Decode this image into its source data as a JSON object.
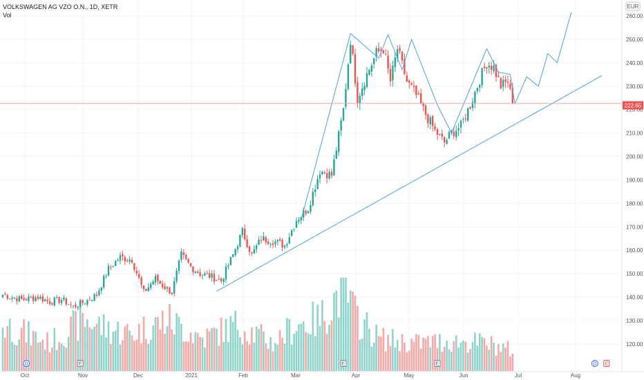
{
  "header": {
    "symbol": "VOLKSWAGEN AG VZO O.N., 1D, XETR",
    "volume_label": "Vol"
  },
  "axis": {
    "currency": "EUR",
    "last_price_label": "222.65"
  },
  "colors": {
    "up": "#26a69a",
    "down": "#ef5350",
    "vol_up": "#8fd3cb",
    "vol_down": "#f4a9a7",
    "drawing": "#4aa3df",
    "price_line": "#f2a7a5"
  },
  "chart_data": {
    "type": "candlestick",
    "title": "VOLKSWAGEN AG VZO O.N., 1D, XETR",
    "y_axis": {
      "ticks": [
        120,
        130,
        140,
        150,
        160,
        170,
        180,
        190,
        200,
        210,
        220,
        230,
        240,
        250,
        260
      ],
      "range": [
        112,
        266
      ],
      "unit": "EUR"
    },
    "x_axis": {
      "ticks": [
        "Oct",
        "Nov",
        "Dec",
        "2021",
        "Feb",
        "Mar",
        "Apr",
        "May",
        "Jun",
        "Jul",
        "Aug"
      ]
    },
    "last_price": 222.65,
    "anchors": [
      {
        "i": 0,
        "v": 141
      },
      {
        "i": 8,
        "v": 139
      },
      {
        "i": 15,
        "v": 140
      },
      {
        "i": 20,
        "v": 138
      },
      {
        "i": 25,
        "v": 139
      },
      {
        "i": 30,
        "v": 136
      },
      {
        "i": 35,
        "v": 138
      },
      {
        "i": 40,
        "v": 141
      },
      {
        "i": 45,
        "v": 152
      },
      {
        "i": 50,
        "v": 157
      },
      {
        "i": 55,
        "v": 156
      },
      {
        "i": 60,
        "v": 142
      },
      {
        "i": 65,
        "v": 148
      },
      {
        "i": 68,
        "v": 145
      },
      {
        "i": 72,
        "v": 142
      },
      {
        "i": 76,
        "v": 158
      },
      {
        "i": 80,
        "v": 153
      },
      {
        "i": 84,
        "v": 150
      },
      {
        "i": 88,
        "v": 149
      },
      {
        "i": 93,
        "v": 147
      },
      {
        "i": 98,
        "v": 158
      },
      {
        "i": 102,
        "v": 168
      },
      {
        "i": 106,
        "v": 158
      },
      {
        "i": 110,
        "v": 165
      },
      {
        "i": 115,
        "v": 164
      },
      {
        "i": 120,
        "v": 162
      },
      {
        "i": 125,
        "v": 173
      },
      {
        "i": 130,
        "v": 178
      },
      {
        "i": 135,
        "v": 194
      },
      {
        "i": 140,
        "v": 192
      },
      {
        "i": 145,
        "v": 220
      },
      {
        "i": 148,
        "v": 250
      },
      {
        "i": 151,
        "v": 225
      },
      {
        "i": 155,
        "v": 235
      },
      {
        "i": 159,
        "v": 244
      },
      {
        "i": 162,
        "v": 246
      },
      {
        "i": 165,
        "v": 232
      },
      {
        "i": 168,
        "v": 246
      },
      {
        "i": 172,
        "v": 232
      },
      {
        "i": 176,
        "v": 226
      },
      {
        "i": 180,
        "v": 218
      },
      {
        "i": 184,
        "v": 211
      },
      {
        "i": 188,
        "v": 206
      },
      {
        "i": 191,
        "v": 210
      },
      {
        "i": 195,
        "v": 213
      },
      {
        "i": 199,
        "v": 222
      },
      {
        "i": 203,
        "v": 233
      },
      {
        "i": 206,
        "v": 240
      },
      {
        "i": 209,
        "v": 238
      },
      {
        "i": 212,
        "v": 230
      },
      {
        "i": 215,
        "v": 232
      },
      {
        "i": 217,
        "v": 222.65
      }
    ],
    "volume": [
      {
        "i": 0,
        "v": 0.5
      },
      {
        "i": 20,
        "v": 0.3
      },
      {
        "i": 35,
        "v": 0.55
      },
      {
        "i": 45,
        "v": 0.45
      },
      {
        "i": 55,
        "v": 0.4
      },
      {
        "i": 70,
        "v": 0.55
      },
      {
        "i": 85,
        "v": 0.35
      },
      {
        "i": 100,
        "v": 0.5
      },
      {
        "i": 115,
        "v": 0.3
      },
      {
        "i": 125,
        "v": 0.5
      },
      {
        "i": 135,
        "v": 0.55
      },
      {
        "i": 145,
        "v": 0.9
      },
      {
        "i": 150,
        "v": 0.6
      },
      {
        "i": 160,
        "v": 0.35
      },
      {
        "i": 175,
        "v": 0.3
      },
      {
        "i": 190,
        "v": 0.32
      },
      {
        "i": 205,
        "v": 0.3
      },
      {
        "i": 217,
        "v": 0.22
      }
    ],
    "drawings": {
      "trendline": [
        {
          "i": 91,
          "v": 142.5
        },
        {
          "i": 255,
          "v": 234.5
        }
      ],
      "path": [
        {
          "i": 127,
          "v": 173
        },
        {
          "i": 148,
          "v": 252.5
        },
        {
          "i": 160,
          "v": 242
        },
        {
          "i": 164,
          "v": 252
        },
        {
          "i": 170,
          "v": 237
        },
        {
          "i": 174,
          "v": 250
        },
        {
          "i": 185,
          "v": 222
        },
        {
          "i": 191,
          "v": 210
        },
        {
          "i": 206,
          "v": 246
        },
        {
          "i": 211,
          "v": 236
        },
        {
          "i": 216,
          "v": 235
        },
        {
          "i": 218,
          "v": 222.5
        },
        {
          "i": 223,
          "v": 234
        },
        {
          "i": 228,
          "v": 230
        },
        {
          "i": 232,
          "v": 244
        },
        {
          "i": 236,
          "v": 240
        },
        {
          "i": 242,
          "v": 261.5
        }
      ]
    },
    "event_markers": [
      {
        "letter": "D",
        "i": 10,
        "kind": "dividend"
      },
      {
        "letter": "E",
        "i": 33,
        "kind": "earnings"
      },
      {
        "letter": "E",
        "i": 145,
        "kind": "earnings"
      },
      {
        "letter": "E",
        "i": 185,
        "kind": "earnings"
      },
      {
        "letter": "D",
        "i": 252,
        "kind": "dividend"
      },
      {
        "letter": "E",
        "i": 257,
        "kind": "earnings"
      }
    ]
  }
}
